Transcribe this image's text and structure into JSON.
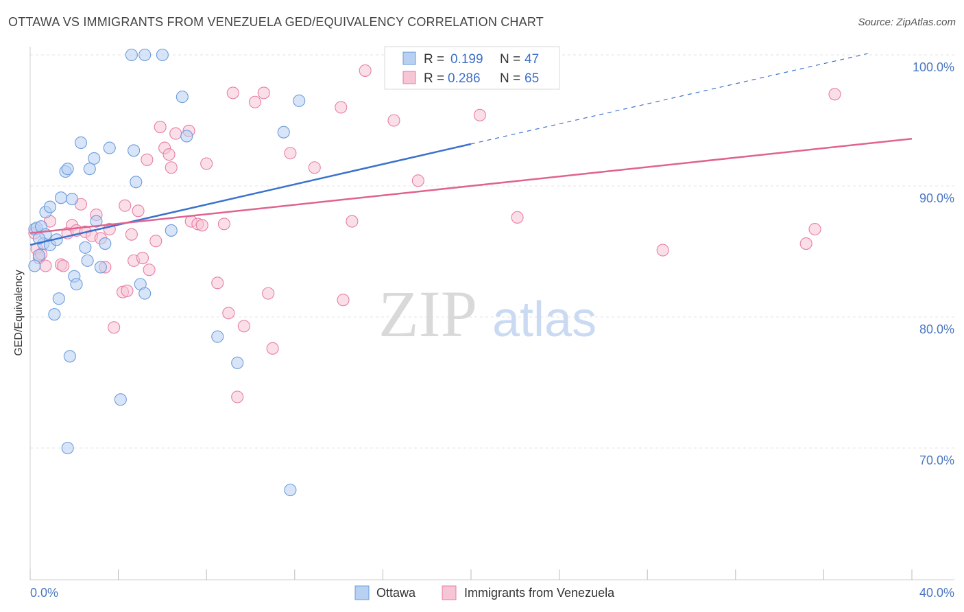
{
  "title": "OTTAWA VS IMMIGRANTS FROM VENEZUELA GED/EQUIVALENCY CORRELATION CHART",
  "source": "Source: ZipAtlas.com",
  "watermark": {
    "zip": "ZIP",
    "atlas": "atlas"
  },
  "chart_data": {
    "type": "scatter",
    "ylabel": "GED/Equivalency",
    "xlim": [
      0,
      40
    ],
    "ylim": [
      60,
      101
    ],
    "x_tick_labels": [
      {
        "value": 0,
        "label": "0.0%"
      },
      {
        "value": 40,
        "label": "40.0%"
      }
    ],
    "y_tick_labels": [
      {
        "value": 100,
        "label": "100.0%"
      },
      {
        "value": 90,
        "label": "90.0%"
      },
      {
        "value": 80,
        "label": "80.0%"
      },
      {
        "value": 70,
        "label": "70.0%"
      }
    ],
    "grid": true,
    "legend_position": "top-center",
    "series": [
      {
        "name": "Ottawa",
        "color": "#6a9bdc",
        "fill": "#b8d0f2",
        "R": "0.199",
        "N": "47",
        "trend": {
          "x0": 0,
          "y0": 85.5,
          "x1": 20,
          "y1": 93.2,
          "dash_to_x": 38,
          "dash_to_y": 100.1
        },
        "points": [
          [
            0.2,
            86.7
          ],
          [
            0.3,
            86.8
          ],
          [
            0.4,
            84.7
          ],
          [
            0.5,
            86.9
          ],
          [
            0.7,
            86.3
          ],
          [
            0.6,
            85.6
          ],
          [
            0.9,
            85.5
          ],
          [
            0.2,
            83.9
          ],
          [
            0.7,
            88.0
          ],
          [
            0.9,
            88.4
          ],
          [
            1.4,
            89.1
          ],
          [
            1.6,
            91.1
          ],
          [
            1.7,
            91.3
          ],
          [
            1.9,
            89.0
          ],
          [
            2.3,
            93.3
          ],
          [
            2.7,
            91.3
          ],
          [
            2.9,
            92.1
          ],
          [
            3.6,
            92.9
          ],
          [
            4.7,
            92.7
          ],
          [
            4.8,
            90.3
          ],
          [
            3.0,
            87.3
          ],
          [
            2.5,
            85.3
          ],
          [
            3.4,
            85.6
          ],
          [
            2.6,
            84.3
          ],
          [
            3.2,
            83.8
          ],
          [
            2.0,
            83.1
          ],
          [
            2.1,
            82.5
          ],
          [
            1.3,
            81.4
          ],
          [
            1.1,
            80.2
          ],
          [
            1.8,
            77.0
          ],
          [
            4.1,
            73.7
          ],
          [
            1.7,
            70.0
          ],
          [
            4.6,
            100.0
          ],
          [
            5.2,
            100.0
          ],
          [
            6.0,
            100.0
          ],
          [
            6.9,
            96.8
          ],
          [
            7.1,
            93.8
          ],
          [
            6.4,
            86.6
          ],
          [
            5.0,
            82.5
          ],
          [
            5.2,
            81.8
          ],
          [
            11.5,
            94.1
          ],
          [
            12.2,
            96.5
          ],
          [
            8.5,
            78.5
          ],
          [
            9.4,
            76.5
          ],
          [
            11.8,
            66.8
          ],
          [
            0.4,
            86.0
          ],
          [
            1.2,
            85.9
          ]
        ]
      },
      {
        "name": "Immigrants from Venezuela",
        "color": "#e87da3",
        "fill": "#f6c5d6",
        "R": "0.286",
        "N": "65",
        "trend": {
          "x0": 0,
          "y0": 86.4,
          "x1": 40,
          "y1": 93.6
        },
        "points": [
          [
            0.2,
            86.4
          ],
          [
            0.3,
            85.2
          ],
          [
            0.4,
            84.5
          ],
          [
            0.5,
            84.8
          ],
          [
            0.7,
            83.9
          ],
          [
            0.9,
            87.3
          ],
          [
            1.4,
            84.0
          ],
          [
            1.5,
            83.9
          ],
          [
            1.7,
            86.4
          ],
          [
            1.9,
            87.0
          ],
          [
            2.1,
            86.6
          ],
          [
            2.3,
            88.6
          ],
          [
            2.5,
            86.5
          ],
          [
            2.8,
            86.2
          ],
          [
            3.0,
            87.8
          ],
          [
            3.2,
            86.0
          ],
          [
            3.4,
            83.8
          ],
          [
            3.6,
            86.7
          ],
          [
            3.8,
            79.2
          ],
          [
            4.2,
            81.9
          ],
          [
            4.3,
            88.5
          ],
          [
            4.4,
            82.0
          ],
          [
            4.6,
            86.3
          ],
          [
            4.7,
            84.3
          ],
          [
            4.9,
            88.1
          ],
          [
            5.1,
            84.5
          ],
          [
            5.3,
            92.0
          ],
          [
            5.4,
            83.6
          ],
          [
            5.7,
            85.8
          ],
          [
            5.9,
            94.5
          ],
          [
            6.1,
            92.9
          ],
          [
            6.3,
            92.4
          ],
          [
            6.4,
            91.4
          ],
          [
            6.6,
            94.0
          ],
          [
            7.2,
            94.2
          ],
          [
            7.3,
            87.3
          ],
          [
            7.6,
            87.1
          ],
          [
            7.8,
            87.0
          ],
          [
            8.0,
            91.7
          ],
          [
            8.5,
            82.6
          ],
          [
            8.8,
            87.1
          ],
          [
            9.0,
            80.3
          ],
          [
            9.2,
            97.1
          ],
          [
            9.4,
            73.9
          ],
          [
            9.7,
            79.3
          ],
          [
            10.2,
            96.4
          ],
          [
            10.6,
            97.1
          ],
          [
            10.8,
            81.8
          ],
          [
            11.0,
            77.6
          ],
          [
            11.8,
            92.5
          ],
          [
            12.9,
            91.4
          ],
          [
            14.1,
            96.0
          ],
          [
            14.2,
            81.3
          ],
          [
            14.6,
            87.3
          ],
          [
            15.2,
            98.8
          ],
          [
            16.5,
            95.0
          ],
          [
            17.6,
            90.4
          ],
          [
            20.4,
            95.4
          ],
          [
            21.3,
            100.0
          ],
          [
            22.1,
            87.6
          ],
          [
            23.2,
            100.0
          ],
          [
            28.7,
            85.1
          ],
          [
            35.2,
            85.6
          ],
          [
            35.6,
            86.7
          ],
          [
            36.5,
            97.0
          ]
        ]
      }
    ]
  },
  "bottom_legend": [
    "Ottawa",
    "Immigrants from Venezuela"
  ],
  "legend_labels": {
    "r": "R = ",
    "n": "N = "
  }
}
